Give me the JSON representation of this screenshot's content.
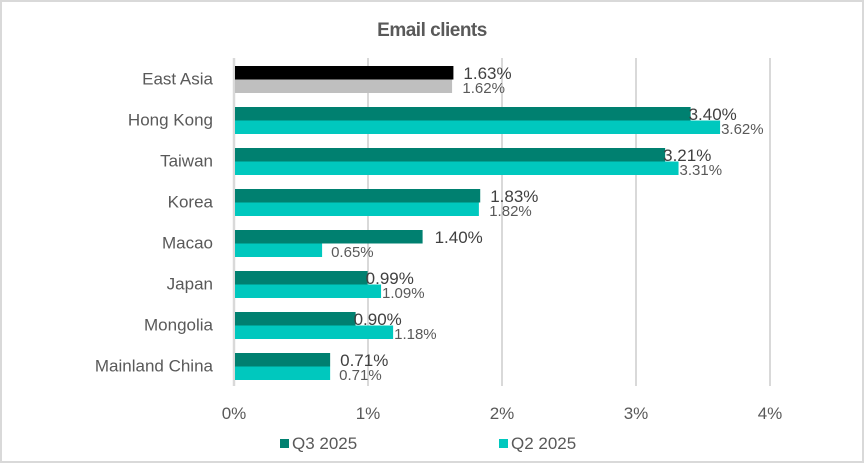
{
  "chart_data": {
    "type": "bar",
    "orientation": "horizontal",
    "title": "Email clients",
    "categories": [
      "East Asia",
      "Hong Kong",
      "Taiwan",
      "Korea",
      "Macao",
      "Japan",
      "Mongolia",
      "Mainland China"
    ],
    "series": [
      {
        "name": "Q3 2025",
        "color": "#008070",
        "highlight_color": "#000000",
        "values": [
          1.63,
          3.4,
          3.21,
          1.83,
          1.4,
          0.99,
          0.9,
          0.71
        ],
        "labels": [
          "1.63%",
          "3.40%",
          "3.21%",
          "1.83%",
          "1.40%",
          "0.99%",
          "0.90%",
          "0.71%"
        ]
      },
      {
        "name": "Q2 2025",
        "color": "#00C8BE",
        "highlight_color": "#BFBFBF",
        "values": [
          1.62,
          3.62,
          3.31,
          1.82,
          0.65,
          1.09,
          1.18,
          0.71
        ],
        "labels": [
          "1.62%",
          "3.62%",
          "3.31%",
          "1.82%",
          "0.65%",
          "1.09%",
          "1.18%",
          "0.71%"
        ]
      }
    ],
    "xlim": [
      0,
      4
    ],
    "xticks": [
      0,
      1,
      2,
      3,
      4
    ],
    "xtick_labels": [
      "0%",
      "1%",
      "2%",
      "3%",
      "4%"
    ],
    "xlabel": "",
    "ylabel": "",
    "grid": true,
    "legend": {
      "placement": "bottom",
      "entries": [
        "Q3 2025",
        "Q2 2025"
      ]
    }
  }
}
